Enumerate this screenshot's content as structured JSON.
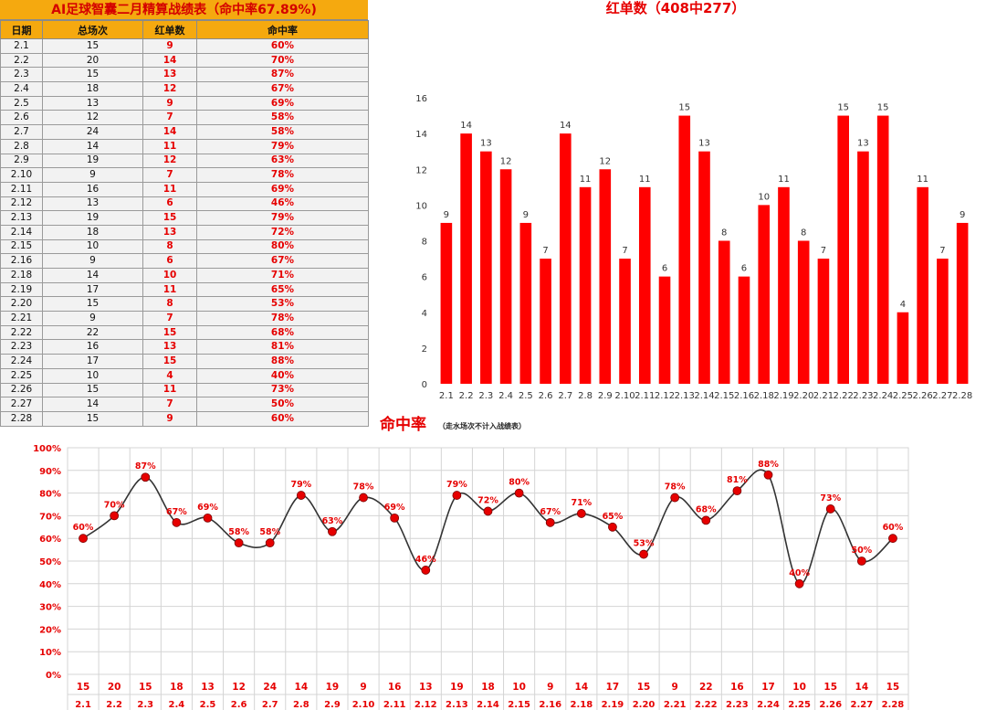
{
  "table": {
    "title": "AI足球智囊二月精算战绩表（命中率67.89%)",
    "headers": [
      "日期",
      "总场次",
      "红单数",
      "命中率"
    ],
    "rows": [
      [
        "2.1",
        "15",
        "9",
        "60%"
      ],
      [
        "2.2",
        "20",
        "14",
        "70%"
      ],
      [
        "2.3",
        "15",
        "13",
        "87%"
      ],
      [
        "2.4",
        "18",
        "12",
        "67%"
      ],
      [
        "2.5",
        "13",
        "9",
        "69%"
      ],
      [
        "2.6",
        "12",
        "7",
        "58%"
      ],
      [
        "2.7",
        "24",
        "14",
        "58%"
      ],
      [
        "2.8",
        "14",
        "11",
        "79%"
      ],
      [
        "2.9",
        "19",
        "12",
        "63%"
      ],
      [
        "2.10",
        "9",
        "7",
        "78%"
      ],
      [
        "2.11",
        "16",
        "11",
        "69%"
      ],
      [
        "2.12",
        "13",
        "6",
        "46%"
      ],
      [
        "2.13",
        "19",
        "15",
        "79%"
      ],
      [
        "2.14",
        "18",
        "13",
        "72%"
      ],
      [
        "2.15",
        "10",
        "8",
        "80%"
      ],
      [
        "2.16",
        "9",
        "6",
        "67%"
      ],
      [
        "2.18",
        "14",
        "10",
        "71%"
      ],
      [
        "2.19",
        "17",
        "11",
        "65%"
      ],
      [
        "2.20",
        "15",
        "8",
        "53%"
      ],
      [
        "2.21",
        "9",
        "7",
        "78%"
      ],
      [
        "2.22",
        "22",
        "15",
        "68%"
      ],
      [
        "2.23",
        "16",
        "13",
        "81%"
      ],
      [
        "2.24",
        "17",
        "15",
        "88%"
      ],
      [
        "2.25",
        "10",
        "4",
        "40%"
      ],
      [
        "2.26",
        "15",
        "11",
        "73%"
      ],
      [
        "2.27",
        "14",
        "7",
        "50%"
      ],
      [
        "2.28",
        "15",
        "9",
        "60%"
      ]
    ]
  },
  "chart_data": [
    {
      "type": "bar",
      "title": "红单数（408中277）",
      "categories": [
        "2.1",
        "2.2",
        "2.3",
        "2.4",
        "2.5",
        "2.6",
        "2.7",
        "2.8",
        "2.9",
        "2.10",
        "2.11",
        "2.12",
        "2.13",
        "2.14",
        "2.15",
        "2.16",
        "2.18",
        "2.19",
        "2.20",
        "2.21",
        "2.22",
        "2.23",
        "2.24",
        "2.25",
        "2.26",
        "2.27",
        "2.28"
      ],
      "values": [
        9,
        14,
        13,
        12,
        9,
        7,
        14,
        11,
        12,
        7,
        11,
        6,
        15,
        13,
        8,
        6,
        10,
        11,
        8,
        7,
        15,
        13,
        15,
        4,
        11,
        7,
        9
      ],
      "ylim": [
        0,
        16
      ],
      "yticks": [
        "0",
        "2",
        "4",
        "6",
        "8",
        "10",
        "12",
        "14",
        "16"
      ],
      "color": "#ff0000",
      "grid": false
    },
    {
      "type": "line",
      "title": "命中率",
      "subtitle": "（走水场次不计入战绩表）",
      "x": [
        "2.1",
        "2.2",
        "2.3",
        "2.4",
        "2.5",
        "2.6",
        "2.7",
        "2.8",
        "2.9",
        "2.10",
        "2.11",
        "2.12",
        "2.13",
        "2.14",
        "2.15",
        "2.16",
        "2.18",
        "2.19",
        "2.20",
        "2.21",
        "2.22",
        "2.23",
        "2.24",
        "2.25",
        "2.26",
        "2.27",
        "2.28"
      ],
      "totals": [
        "15",
        "20",
        "15",
        "18",
        "13",
        "12",
        "24",
        "14",
        "19",
        "9",
        "16",
        "13",
        "19",
        "18",
        "10",
        "9",
        "14",
        "17",
        "15",
        "9",
        "22",
        "16",
        "17",
        "10",
        "15",
        "14",
        "15"
      ],
      "values": [
        60,
        70,
        87,
        67,
        69,
        58,
        58,
        79,
        63,
        78,
        69,
        46,
        79,
        72,
        80,
        67,
        71,
        65,
        53,
        78,
        68,
        81,
        88,
        40,
        73,
        50,
        60
      ],
      "ylim": [
        0,
        100
      ],
      "yticks": [
        "0%",
        "10%",
        "20%",
        "30%",
        "40%",
        "50%",
        "60%",
        "70%",
        "80%",
        "90%",
        "100%"
      ],
      "color": "#e60000",
      "line_color": "#333333",
      "grid": true
    }
  ]
}
